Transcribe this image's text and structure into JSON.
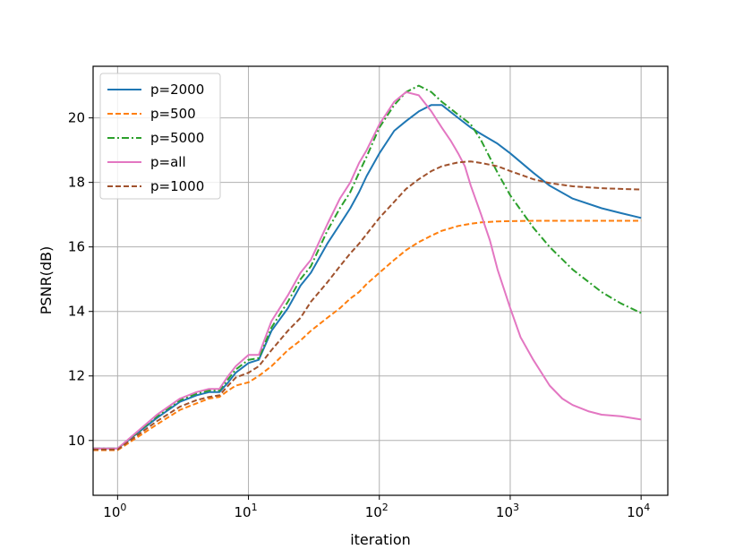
{
  "chart_data": {
    "type": "line",
    "xlabel": "iteration",
    "ylabel": "PSNR(dB)",
    "x_scale": "log",
    "xlim": [
      0.65,
      16000
    ],
    "ylim": [
      8.3,
      21.6
    ],
    "grid": true,
    "legend_position": "top-left",
    "x_ticks": [
      {
        "value": 1,
        "base": "10",
        "exp": "0"
      },
      {
        "value": 10,
        "base": "10",
        "exp": "1"
      },
      {
        "value": 100,
        "base": "10",
        "exp": "2"
      },
      {
        "value": 1000,
        "base": "10",
        "exp": "3"
      },
      {
        "value": 10000,
        "base": "10",
        "exp": "4"
      }
    ],
    "y_ticks": [
      {
        "value": 10,
        "label": "10"
      },
      {
        "value": 12,
        "label": "12"
      },
      {
        "value": 14,
        "label": "14"
      },
      {
        "value": 16,
        "label": "16"
      },
      {
        "value": 18,
        "label": "18"
      },
      {
        "value": 20,
        "label": "20"
      }
    ],
    "series": [
      {
        "name": "p=2000",
        "color": "#1f77b4",
        "style": "solid",
        "x": [
          0.65,
          1,
          2,
          3,
          4,
          5,
          6,
          7,
          8,
          10,
          12,
          15,
          20,
          25,
          30,
          40,
          50,
          60,
          70,
          80,
          100,
          130,
          160,
          200,
          250,
          300,
          400,
          500,
          600,
          800,
          1000,
          1500,
          2000,
          3000,
          5000,
          7000,
          10000
        ],
        "y": [
          9.75,
          9.75,
          10.7,
          11.2,
          11.4,
          11.5,
          11.5,
          11.8,
          12.1,
          12.4,
          12.5,
          13.4,
          14.1,
          14.8,
          15.2,
          16.1,
          16.7,
          17.2,
          17.7,
          18.2,
          18.9,
          19.6,
          19.9,
          20.2,
          20.4,
          20.4,
          20.0,
          19.7,
          19.5,
          19.2,
          18.9,
          18.3,
          17.9,
          17.5,
          17.2,
          17.05,
          16.9
        ]
      },
      {
        "name": "p=500",
        "color": "#ff7f0e",
        "style": "dashed",
        "x": [
          0.65,
          1,
          2,
          3,
          4,
          5,
          6,
          7,
          8,
          10,
          12,
          15,
          20,
          25,
          30,
          40,
          50,
          60,
          70,
          80,
          100,
          130,
          160,
          200,
          250,
          300,
          400,
          500,
          600,
          800,
          1000,
          1500,
          2000,
          3000,
          5000,
          7000,
          10000
        ],
        "y": [
          9.7,
          9.7,
          10.5,
          10.95,
          11.15,
          11.3,
          11.35,
          11.55,
          11.7,
          11.8,
          12.0,
          12.3,
          12.8,
          13.1,
          13.4,
          13.8,
          14.1,
          14.4,
          14.6,
          14.85,
          15.2,
          15.6,
          15.9,
          16.15,
          16.35,
          16.5,
          16.65,
          16.72,
          16.76,
          16.79,
          16.8,
          16.81,
          16.81,
          16.81,
          16.81,
          16.81,
          16.81
        ]
      },
      {
        "name": "p=5000",
        "color": "#2ca02c",
        "style": "dashdot",
        "x": [
          0.65,
          1,
          2,
          3,
          4,
          5,
          6,
          7,
          8,
          10,
          12,
          15,
          20,
          25,
          30,
          40,
          50,
          60,
          70,
          80,
          100,
          130,
          160,
          200,
          250,
          300,
          400,
          500,
          600,
          800,
          1000,
          1500,
          2000,
          3000,
          5000,
          7000,
          10000
        ],
        "y": [
          9.75,
          9.75,
          10.75,
          11.25,
          11.45,
          11.55,
          11.55,
          11.9,
          12.2,
          12.5,
          12.55,
          13.5,
          14.3,
          15.0,
          15.4,
          16.5,
          17.2,
          17.7,
          18.3,
          18.8,
          19.7,
          20.4,
          20.8,
          21.0,
          20.8,
          20.5,
          20.1,
          19.8,
          19.3,
          18.3,
          17.6,
          16.6,
          16.0,
          15.3,
          14.6,
          14.25,
          13.95
        ]
      },
      {
        "name": "p=all",
        "color": "#e377c2",
        "style": "solid",
        "x": [
          0.65,
          1,
          2,
          3,
          4,
          5,
          6,
          7,
          8,
          10,
          12,
          15,
          20,
          25,
          30,
          40,
          50,
          60,
          70,
          80,
          100,
          130,
          160,
          200,
          250,
          300,
          350,
          400,
          450,
          500,
          600,
          700,
          800,
          1000,
          1200,
          1500,
          2000,
          2500,
          3000,
          4000,
          5000,
          7000,
          10000
        ],
        "y": [
          9.75,
          9.75,
          10.8,
          11.3,
          11.5,
          11.6,
          11.6,
          12.0,
          12.3,
          12.65,
          12.65,
          13.7,
          14.5,
          15.2,
          15.6,
          16.7,
          17.5,
          18.0,
          18.6,
          19.0,
          19.8,
          20.5,
          20.8,
          20.7,
          20.2,
          19.7,
          19.3,
          18.9,
          18.5,
          17.9,
          17.0,
          16.2,
          15.3,
          14.1,
          13.2,
          12.5,
          11.7,
          11.3,
          11.1,
          10.9,
          10.8,
          10.75,
          10.65
        ]
      },
      {
        "name": "p=1000",
        "color": "#a0522d",
        "style": "dashed",
        "x": [
          0.65,
          1,
          2,
          3,
          4,
          5,
          6,
          7,
          8,
          10,
          12,
          15,
          20,
          25,
          30,
          40,
          50,
          60,
          70,
          80,
          100,
          130,
          160,
          200,
          250,
          300,
          400,
          500,
          600,
          800,
          1000,
          1500,
          2000,
          3000,
          5000,
          7000,
          10000
        ],
        "y": [
          9.72,
          9.72,
          10.6,
          11.05,
          11.25,
          11.35,
          11.4,
          11.7,
          11.95,
          12.1,
          12.3,
          12.8,
          13.4,
          13.8,
          14.3,
          14.9,
          15.4,
          15.8,
          16.1,
          16.4,
          16.9,
          17.4,
          17.8,
          18.1,
          18.35,
          18.5,
          18.62,
          18.65,
          18.6,
          18.5,
          18.35,
          18.1,
          17.98,
          17.88,
          17.82,
          17.8,
          17.78
        ]
      }
    ]
  }
}
